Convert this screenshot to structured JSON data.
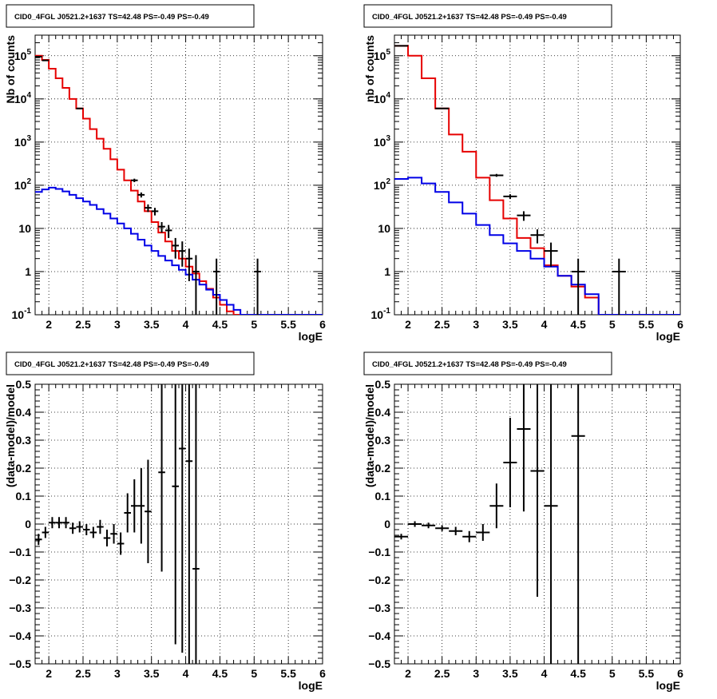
{
  "chart_data": [
    {
      "type": "step-line-with-errorbars",
      "title": "CID0_4FGL J0521.2+1637 TS=42.48 PS=-0.49 PS=-0.49",
      "xlabel": "logE",
      "ylabel": "Nb of counts",
      "log_y": true,
      "grid": true,
      "xlim": [
        1.8,
        6.0
      ],
      "ylim": [
        0.1,
        300000
      ],
      "x_ticks": [
        "2",
        "2.5",
        "3",
        "3.5",
        "4",
        "4.5",
        "5",
        "5.5",
        "6"
      ],
      "x_tick_values": [
        2,
        2.5,
        3,
        3.5,
        4,
        4.5,
        5,
        5.5,
        6
      ],
      "y_ticks": [
        "10^-1",
        "1",
        "10",
        "10^2",
        "10^3",
        "10^4",
        "10^5"
      ],
      "y_tick_values": [
        0.1,
        1,
        10,
        100,
        1000,
        10000,
        100000
      ],
      "bin_edges": [
        1.8,
        1.9,
        2.0,
        2.1,
        2.2,
        2.3,
        2.4,
        2.5,
        2.6,
        2.7,
        2.8,
        2.9,
        3.0,
        3.1,
        3.2,
        3.3,
        3.4,
        3.5,
        3.6,
        3.7,
        3.8,
        3.9,
        4.0,
        4.1,
        4.2,
        4.3,
        4.4,
        4.5,
        4.6,
        4.7,
        4.8,
        4.9,
        5.0,
        5.1,
        5.2,
        5.3,
        5.4,
        5.5,
        5.6,
        5.7,
        5.8,
        5.9,
        6.0
      ],
      "series": [
        {
          "color": "#e60000",
          "kind": "step",
          "values": [
            100000,
            80000,
            50000,
            30000,
            18000,
            10000,
            6000,
            3500,
            2000,
            1200,
            700,
            400,
            230,
            130,
            75,
            42,
            25,
            14,
            8,
            5,
            3,
            2,
            1.3,
            0.9,
            0.6,
            0.4,
            0.25,
            0.17,
            0.12,
            0.1,
            0.1,
            0.1,
            0.1,
            0.1,
            0.1,
            0.1,
            0.1,
            0.1,
            0.1,
            0.1,
            0.1,
            0.1
          ]
        },
        {
          "color": "#0000e6",
          "kind": "step",
          "values": [
            70,
            80,
            88,
            82,
            72,
            60,
            50,
            42,
            35,
            28,
            22,
            17,
            13,
            10,
            7.5,
            5.5,
            4,
            3,
            2.3,
            1.8,
            1.4,
            1.1,
            0.85,
            0.65,
            0.5,
            0.38,
            0.29,
            0.22,
            0.17,
            0.13,
            0.1,
            0.1,
            0.1,
            0.1,
            0.1,
            0.1,
            0.1,
            0.1,
            0.1,
            0.1,
            0.1,
            0.1
          ]
        }
      ],
      "points": [
        {
          "x": 1.85,
          "y": 95000,
          "lo": 92000,
          "hi": 98000
        },
        {
          "x": 1.95,
          "y": 78000,
          "lo": 76000,
          "hi": 80000
        },
        {
          "x": 2.45,
          "y": 6000,
          "lo": 5800,
          "hi": 6200
        },
        {
          "x": 3.25,
          "y": 130,
          "lo": 118,
          "hi": 142
        },
        {
          "x": 3.35,
          "y": 60,
          "lo": 52,
          "hi": 68
        },
        {
          "x": 3.45,
          "y": 30,
          "lo": 24,
          "hi": 36
        },
        {
          "x": 3.55,
          "y": 25,
          "lo": 20,
          "hi": 30
        },
        {
          "x": 3.65,
          "y": 11,
          "lo": 8,
          "hi": 14
        },
        {
          "x": 3.75,
          "y": 9,
          "lo": 6,
          "hi": 12
        },
        {
          "x": 3.85,
          "y": 4,
          "lo": 2,
          "hi": 6
        },
        {
          "x": 3.95,
          "y": 3,
          "lo": 1.3,
          "hi": 5
        },
        {
          "x": 4.05,
          "y": 2,
          "lo": 0.6,
          "hi": 3.4
        },
        {
          "x": 4.15,
          "y": 1,
          "lo": 0.1,
          "hi": 2.4
        },
        {
          "x": 4.45,
          "y": 1,
          "lo": 0.1,
          "hi": 2
        },
        {
          "x": 5.05,
          "y": 1,
          "lo": 0.1,
          "hi": 2
        }
      ]
    },
    {
      "type": "step-line-with-errorbars",
      "title": "CID0_4FGL J0521.2+1637 TS=42.48 PS=-0.49 PS=-0.49",
      "xlabel": "logE",
      "ylabel": "nb of counts",
      "log_y": true,
      "grid": true,
      "xlim": [
        1.8,
        6.0
      ],
      "ylim": [
        0.1,
        300000
      ],
      "x_ticks": [
        "2",
        "2.5",
        "3",
        "3.5",
        "4",
        "4.5",
        "5",
        "5.5",
        "6"
      ],
      "x_tick_values": [
        2,
        2.5,
        3,
        3.5,
        4,
        4.5,
        5,
        5.5,
        6
      ],
      "y_ticks": [
        "10^-1",
        "1",
        "10",
        "10^2",
        "10^3",
        "10^4",
        "10^5"
      ],
      "y_tick_values": [
        0.1,
        1,
        10,
        100,
        1000,
        10000,
        100000
      ],
      "bin_edges": [
        1.8,
        2.0,
        2.2,
        2.4,
        2.6,
        2.8,
        3.0,
        3.2,
        3.4,
        3.6,
        3.8,
        4.0,
        4.2,
        4.4,
        4.6,
        4.8,
        5.0,
        5.2,
        5.4,
        5.6,
        5.8,
        6.0
      ],
      "series": [
        {
          "color": "#e60000",
          "kind": "step",
          "values": [
            170000,
            100000,
            30000,
            6000,
            1500,
            600,
            150,
            45,
            17,
            6,
            3.5,
            1.4,
            0.8,
            0.45,
            0.25,
            0.1,
            0.1,
            0.1,
            0.1,
            0.1,
            0.1
          ]
        },
        {
          "color": "#0000e6",
          "kind": "step",
          "values": [
            140,
            150,
            110,
            70,
            40,
            22,
            12,
            7,
            4.5,
            3,
            2,
            1.3,
            0.8,
            0.5,
            0.3,
            0.1,
            0.1,
            0.1,
            0.1,
            0.1,
            0.1
          ]
        }
      ],
      "points": [
        {
          "x": 1.9,
          "y": 170000,
          "lo": 165000,
          "hi": 175000
        },
        {
          "x": 2.5,
          "y": 6000,
          "lo": 5850,
          "hi": 6150
        },
        {
          "x": 3.3,
          "y": 170,
          "lo": 157,
          "hi": 183
        },
        {
          "x": 3.5,
          "y": 55,
          "lo": 48,
          "hi": 62
        },
        {
          "x": 3.7,
          "y": 20,
          "lo": 15,
          "hi": 25
        },
        {
          "x": 3.9,
          "y": 7,
          "lo": 4.5,
          "hi": 9.5
        },
        {
          "x": 4.1,
          "y": 3,
          "lo": 1.3,
          "hi": 4.7
        },
        {
          "x": 4.5,
          "y": 1,
          "lo": 0.1,
          "hi": 2
        },
        {
          "x": 5.1,
          "y": 1,
          "lo": 0.1,
          "hi": 2
        }
      ]
    },
    {
      "type": "scatter-with-errorbars",
      "title": "CID0_4FGL J0521.2+1637 TS=42.48 PS=-0.49 PS=-0.49",
      "xlabel": "logE",
      "ylabel": "(data-model)/model",
      "grid": true,
      "xlim": [
        1.8,
        6.0
      ],
      "ylim": [
        -0.5,
        0.5
      ],
      "x_ticks": [
        "2",
        "2.5",
        "3",
        "3.5",
        "4",
        "4.5",
        "5",
        "5.5",
        "6"
      ],
      "x_tick_values": [
        2,
        2.5,
        3,
        3.5,
        4,
        4.5,
        5,
        5.5,
        6
      ],
      "y_ticks": [
        "−0.5",
        "−0.4",
        "−0.3",
        "−0.2",
        "−0.1",
        "0",
        "0.1",
        "0.2",
        "0.3",
        "0.4",
        "0.5"
      ],
      "y_tick_values": [
        -0.5,
        -0.4,
        -0.3,
        -0.2,
        -0.1,
        0,
        0.1,
        0.2,
        0.3,
        0.4,
        0.5
      ],
      "xerr": 0.05,
      "points": [
        {
          "x": 1.85,
          "y": -0.055,
          "lo": -0.075,
          "hi": -0.035
        },
        {
          "x": 1.95,
          "y": -0.03,
          "lo": -0.05,
          "hi": -0.01
        },
        {
          "x": 2.05,
          "y": 0.005,
          "lo": -0.015,
          "hi": 0.025
        },
        {
          "x": 2.15,
          "y": 0.005,
          "lo": -0.015,
          "hi": 0.025
        },
        {
          "x": 2.25,
          "y": 0.005,
          "lo": -0.015,
          "hi": 0.025
        },
        {
          "x": 2.35,
          "y": -0.015,
          "lo": -0.035,
          "hi": 0.005
        },
        {
          "x": 2.45,
          "y": -0.01,
          "lo": -0.03,
          "hi": 0.01
        },
        {
          "x": 2.55,
          "y": -0.02,
          "lo": -0.04,
          "hi": 0.0
        },
        {
          "x": 2.65,
          "y": -0.03,
          "lo": -0.05,
          "hi": -0.01
        },
        {
          "x": 2.75,
          "y": -0.01,
          "lo": -0.035,
          "hi": 0.015
        },
        {
          "x": 2.85,
          "y": -0.05,
          "lo": -0.08,
          "hi": -0.02
        },
        {
          "x": 2.95,
          "y": -0.035,
          "lo": -0.07,
          "hi": 0.0
        },
        {
          "x": 3.05,
          "y": -0.07,
          "lo": -0.11,
          "hi": -0.03
        },
        {
          "x": 3.15,
          "y": 0.04,
          "lo": -0.03,
          "hi": 0.11
        },
        {
          "x": 3.25,
          "y": 0.065,
          "lo": -0.03,
          "hi": 0.16
        },
        {
          "x": 3.35,
          "y": 0.065,
          "lo": -0.07,
          "hi": 0.2
        },
        {
          "x": 3.45,
          "y": 0.045,
          "lo": -0.14,
          "hi": 0.23
        },
        {
          "x": 3.65,
          "y": 0.185,
          "lo": -0.17,
          "hi": 0.5
        },
        {
          "x": 3.85,
          "y": 0.135,
          "lo": -0.43,
          "hi": 0.5
        },
        {
          "x": 3.95,
          "y": 0.27,
          "lo": -0.46,
          "hi": 0.5
        },
        {
          "x": 4.05,
          "y": 0.225,
          "lo": -0.5,
          "hi": 0.5
        },
        {
          "x": 4.15,
          "y": -0.16,
          "lo": -0.5,
          "hi": 0.5
        }
      ]
    },
    {
      "type": "scatter-with-errorbars",
      "title": "CID0_4FGL J0521.2+1637 TS=42.48 PS=-0.49 PS=-0.49",
      "xlabel": "logE",
      "ylabel": "(data-model)/model",
      "grid": true,
      "xlim": [
        1.8,
        6.0
      ],
      "ylim": [
        -0.5,
        0.5
      ],
      "x_ticks": [
        "2",
        "2.5",
        "3",
        "3.5",
        "4",
        "4.5",
        "5",
        "5.5",
        "6"
      ],
      "x_tick_values": [
        2,
        2.5,
        3,
        3.5,
        4,
        4.5,
        5,
        5.5,
        6
      ],
      "y_ticks": [
        "−0.5",
        "−0.4",
        "−0.3",
        "−0.2",
        "−0.1",
        "0",
        "0.1",
        "0.2",
        "0.3",
        "0.4",
        "0.5"
      ],
      "y_tick_values": [
        -0.5,
        -0.4,
        -0.3,
        -0.2,
        -0.1,
        0,
        0.1,
        0.2,
        0.3,
        0.4,
        0.5
      ],
      "xerr": 0.1,
      "points": [
        {
          "x": 1.9,
          "y": -0.045,
          "lo": -0.055,
          "hi": -0.035
        },
        {
          "x": 2.1,
          "y": 0.0,
          "lo": -0.01,
          "hi": 0.01
        },
        {
          "x": 2.3,
          "y": -0.005,
          "lo": -0.015,
          "hi": 0.005
        },
        {
          "x": 2.5,
          "y": -0.015,
          "lo": -0.025,
          "hi": -0.005
        },
        {
          "x": 2.7,
          "y": -0.025,
          "lo": -0.04,
          "hi": -0.01
        },
        {
          "x": 2.9,
          "y": -0.045,
          "lo": -0.065,
          "hi": -0.025
        },
        {
          "x": 3.1,
          "y": -0.03,
          "lo": -0.06,
          "hi": 0.0
        },
        {
          "x": 3.3,
          "y": 0.065,
          "lo": -0.015,
          "hi": 0.145
        },
        {
          "x": 3.5,
          "y": 0.22,
          "lo": 0.06,
          "hi": 0.38
        },
        {
          "x": 3.7,
          "y": 0.34,
          "lo": 0.045,
          "hi": 0.5
        },
        {
          "x": 3.9,
          "y": 0.19,
          "lo": -0.26,
          "hi": 0.5
        },
        {
          "x": 4.1,
          "y": 0.065,
          "lo": -0.5,
          "hi": 0.5
        },
        {
          "x": 4.5,
          "y": 0.315,
          "lo": -0.5,
          "hi": 0.5
        }
      ]
    }
  ]
}
